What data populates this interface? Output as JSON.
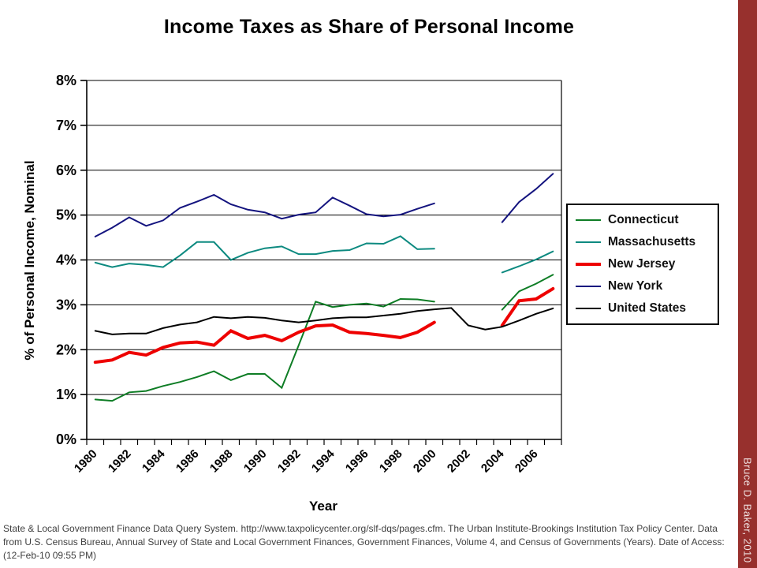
{
  "title": "Income Taxes as Share of Personal Income",
  "footer": "State & Local Government Finance Data Query System. http://www.taxpolicycenter.org/slf-dqs/pages.cfm. The Urban Institute-Brookings Institution Tax Policy Center. Data from U.S. Census Bureau, Annual Survey of State and Local Government Finances, Government Finances, Volume 4, and Census of Governments (Years). Date of Access: (12-Feb-10 09:55 PM)",
  "credit_strip": {
    "text": "Bruce D. Baker, 2010",
    "bg_color": "#97302D",
    "text_color": "#F0E2E2"
  },
  "colors": {
    "grid": "#000000",
    "axis": "#000000",
    "background": "#FFFFFF"
  },
  "chart_data": {
    "type": "line",
    "title": "Income Taxes as Share of Personal Income",
    "xlabel": "Year",
    "ylabel": "% of Personal Income, Nominal",
    "ylim": [
      0,
      8
    ],
    "ytick_step": 1,
    "ytick_suffix": "%",
    "grid": true,
    "legend_position": "right",
    "x": [
      1980,
      1981,
      1982,
      1983,
      1984,
      1985,
      1986,
      1987,
      1988,
      1989,
      1990,
      1991,
      1992,
      1993,
      1994,
      1995,
      1996,
      1997,
      1998,
      1999,
      2000,
      2001,
      2002,
      2003,
      2004,
      2005,
      2006,
      2007
    ],
    "xtick_label_every": 2,
    "series": [
      {
        "name": "Connecticut",
        "color": "#0E7D25",
        "width": 2,
        "values": [
          0.89,
          0.86,
          1.05,
          1.08,
          1.19,
          1.28,
          1.39,
          1.52,
          1.32,
          1.46,
          1.46,
          1.15,
          2.1,
          3.07,
          2.95,
          3.0,
          3.03,
          2.96,
          3.13,
          3.12,
          3.07,
          null,
          null,
          null,
          2.89,
          3.3,
          3.47,
          3.67
        ]
      },
      {
        "name": "Massachusetts",
        "color": "#0D8A80",
        "width": 2,
        "values": [
          3.94,
          3.84,
          3.92,
          3.89,
          3.84,
          4.1,
          4.4,
          4.4,
          4.0,
          4.16,
          4.26,
          4.3,
          4.13,
          4.13,
          4.2,
          4.22,
          4.37,
          4.36,
          4.53,
          4.24,
          4.25,
          null,
          null,
          null,
          3.72,
          3.86,
          4.01,
          4.19
        ]
      },
      {
        "name": "New Jersey",
        "color": "#EE0000",
        "width": 4,
        "values": [
          1.72,
          1.77,
          1.94,
          1.88,
          2.05,
          2.15,
          2.17,
          2.1,
          2.42,
          2.25,
          2.32,
          2.2,
          2.39,
          2.53,
          2.55,
          2.39,
          2.36,
          2.32,
          2.27,
          2.39,
          2.61,
          null,
          null,
          null,
          2.54,
          3.09,
          3.13,
          3.36
        ]
      },
      {
        "name": "New York",
        "color": "#14147F",
        "width": 2,
        "values": [
          4.52,
          4.72,
          4.95,
          4.76,
          4.88,
          5.16,
          5.3,
          5.45,
          5.24,
          5.12,
          5.06,
          4.92,
          5.01,
          5.06,
          5.39,
          5.21,
          5.02,
          4.97,
          5.01,
          5.14,
          5.26,
          null,
          null,
          null,
          4.84,
          5.29,
          5.58,
          5.92
        ]
      },
      {
        "name": "United States",
        "color": "#000000",
        "width": 2,
        "values": [
          2.42,
          2.34,
          2.36,
          2.36,
          2.48,
          2.56,
          2.61,
          2.73,
          2.7,
          2.73,
          2.71,
          2.65,
          2.61,
          2.65,
          2.7,
          2.72,
          2.72,
          2.76,
          2.8,
          2.86,
          2.9,
          2.93,
          2.54,
          2.45,
          2.51,
          2.65,
          2.8,
          2.92
        ]
      }
    ]
  }
}
